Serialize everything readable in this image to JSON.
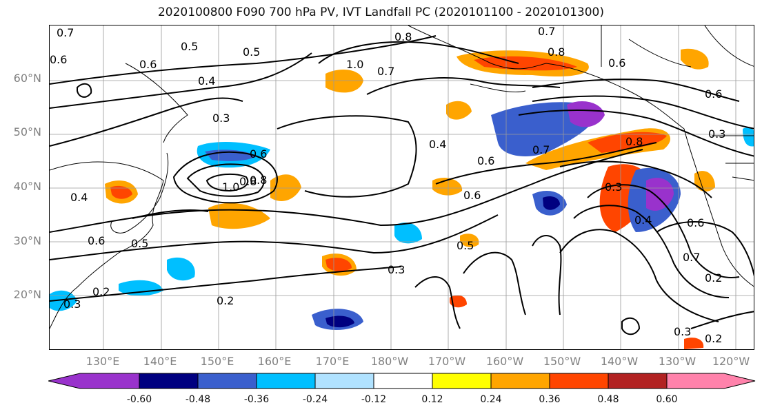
{
  "title": "2020100800 F090 700 hPa PV, IVT Landfall PC (2020101100 - 2020101300)",
  "lat_labels": [
    "60°N",
    "50°N",
    "40°N",
    "30°N",
    "20°N"
  ],
  "lon_labels": [
    "130°E",
    "140°E",
    "150°E",
    "160°E",
    "170°E",
    "180°W",
    "170°W",
    "160°W",
    "150°W",
    "140°W",
    "130°W",
    "120°W"
  ],
  "contour_labels": [
    "0.7",
    "0.6",
    "0.5",
    "0.5",
    "0.6",
    "0.4",
    "0.3",
    "0.8",
    "1.0",
    "0.7",
    "0.7",
    "0.8",
    "0.6",
    "0.6",
    "0.8",
    "0.6",
    "0.7",
    "0.8",
    "0.4",
    "0.6",
    "1.0",
    "0.8",
    "0.4",
    "0.5",
    "0.6",
    "0.2",
    "0.3",
    "0.2",
    "0.3",
    "0.2",
    "0.7",
    "0.3",
    "0.5",
    "0.3",
    "0.2",
    "0.3",
    "0.6",
    "0.4",
    "0.6"
  ],
  "colorbar": {
    "colors": [
      "#9932cc",
      "#000080",
      "#3a5fcd",
      "#00bfff",
      "#b0e2ff",
      "#ffffff",
      "#ffff00",
      "#ffa500",
      "#ff4500",
      "#b22222",
      "#ff82ab"
    ],
    "levels": [
      "-0.60",
      "-0.48",
      "-0.36",
      "-0.24",
      "-0.12",
      "0.12",
      "0.24",
      "0.36",
      "0.48",
      "0.60"
    ]
  }
}
